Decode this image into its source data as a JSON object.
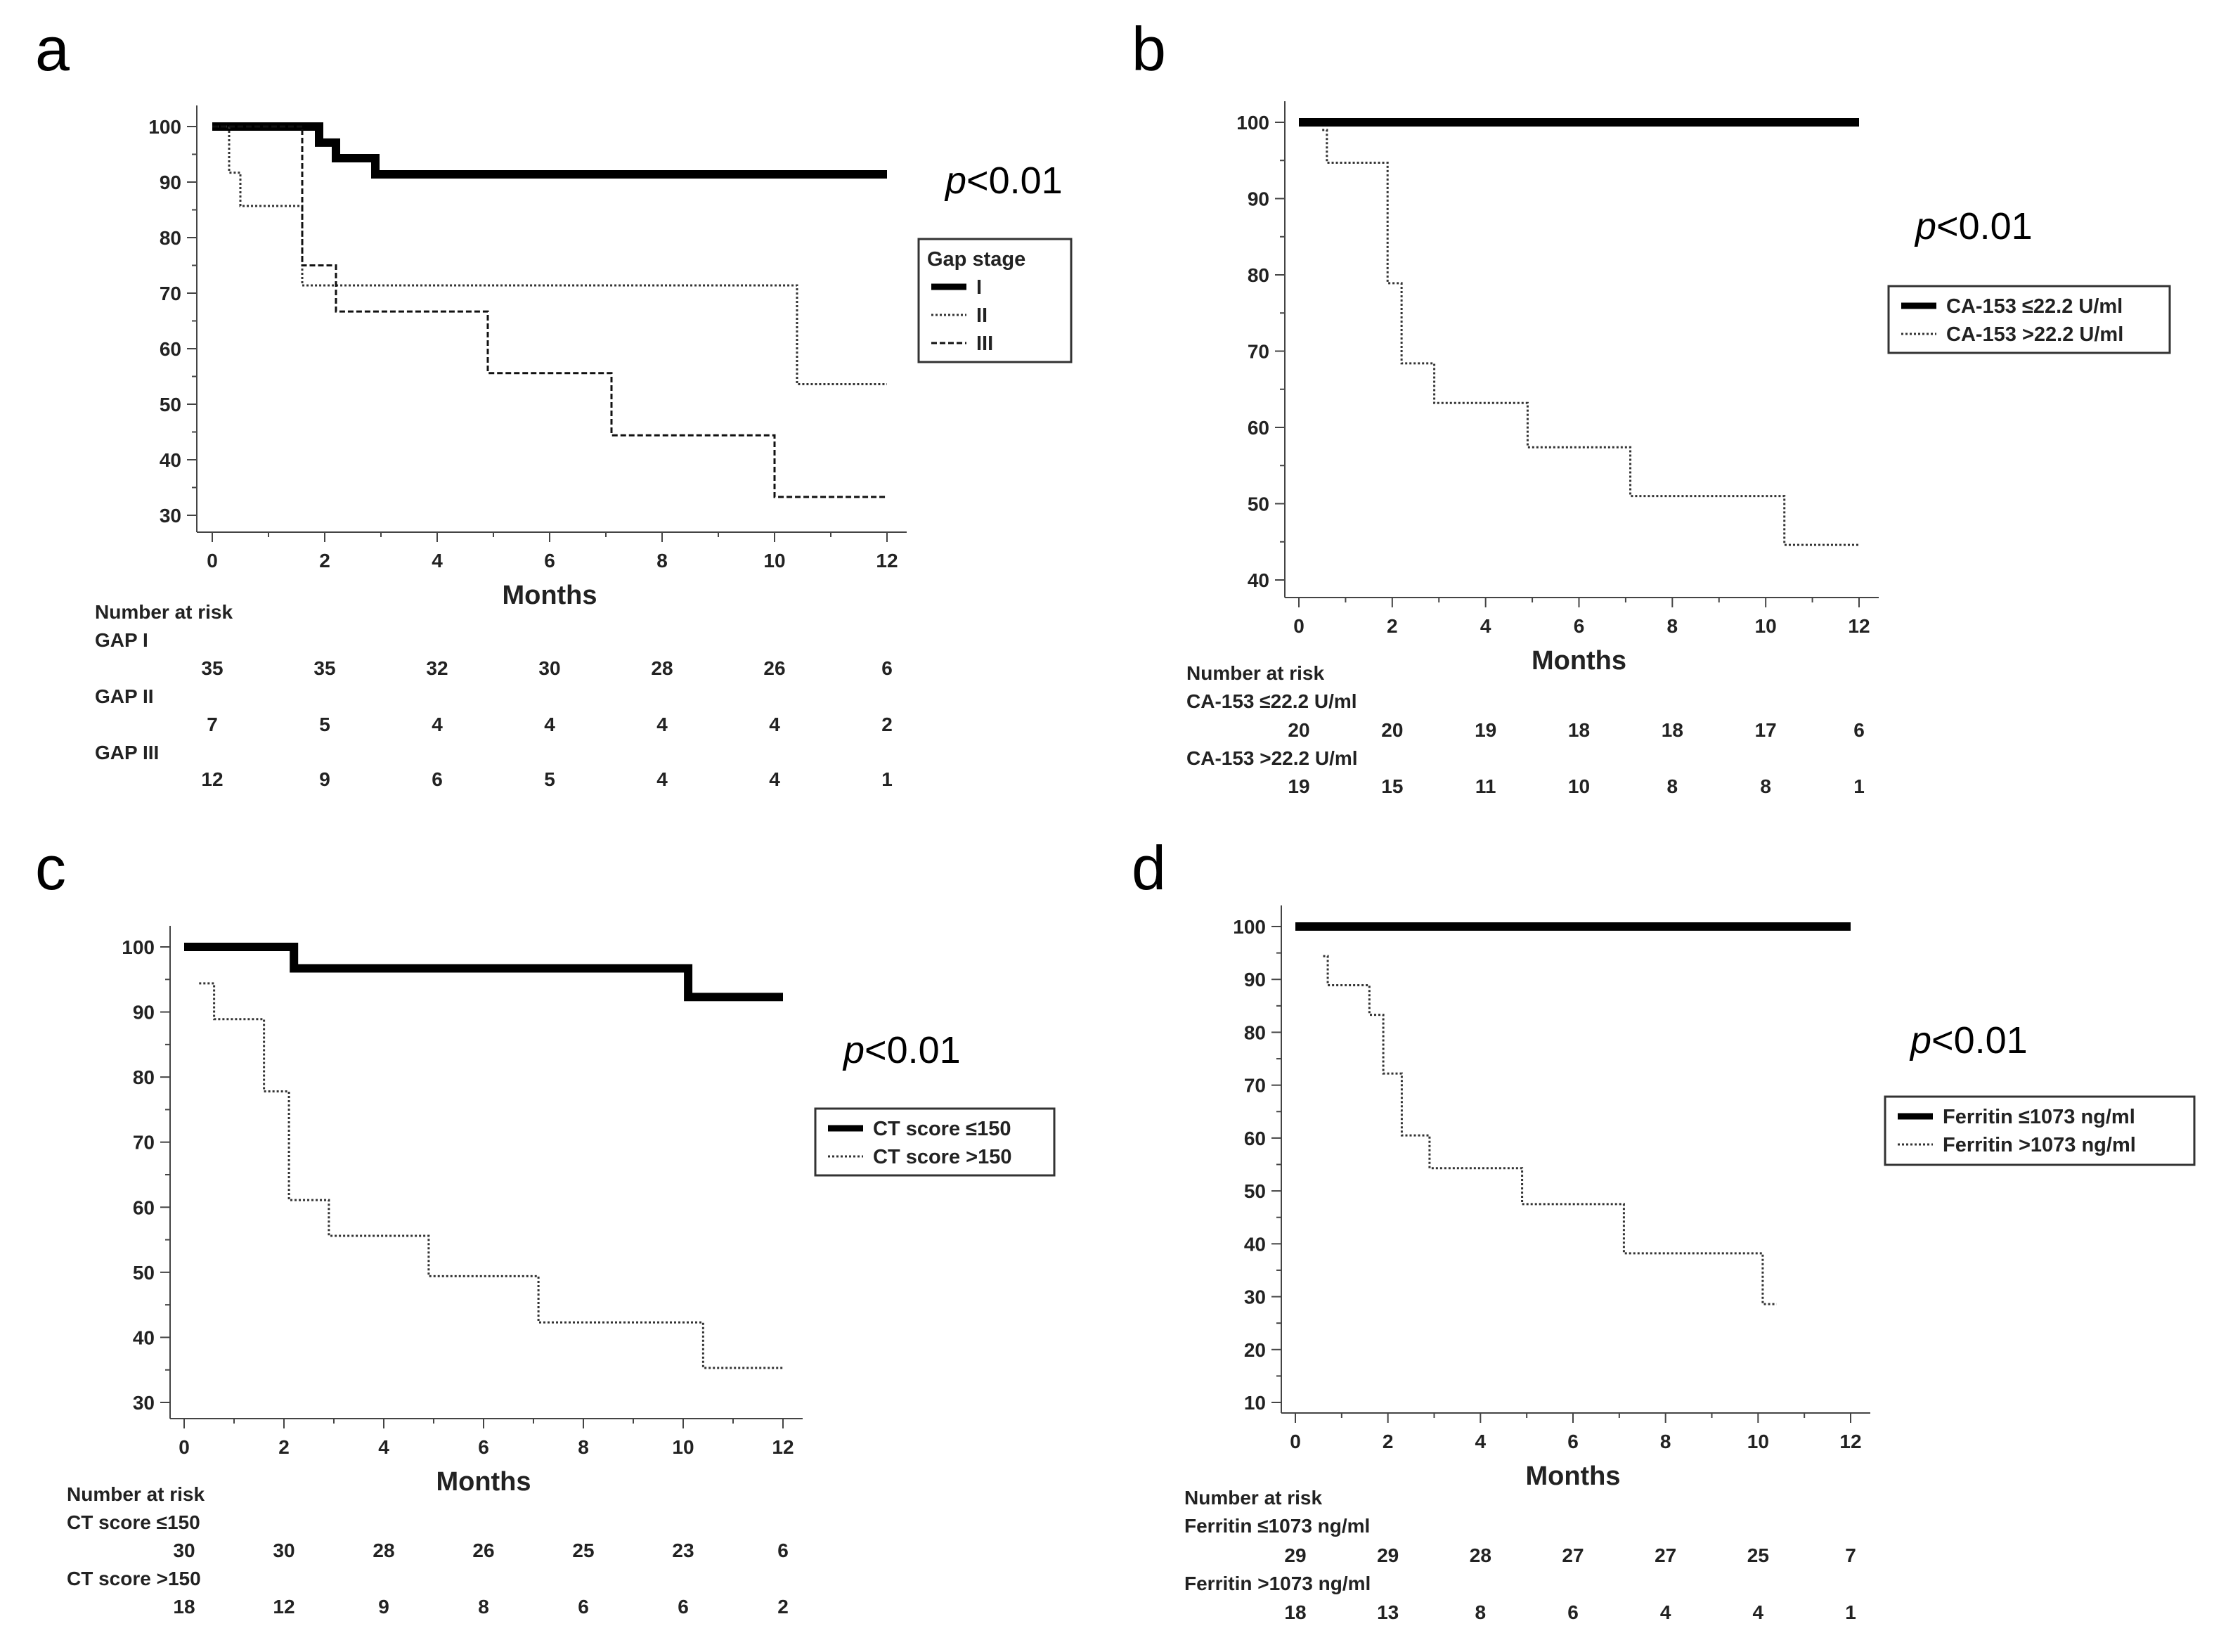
{
  "chart_data": [
    {
      "type": "line",
      "panel": "a",
      "p_value": {
        "prefix": "p",
        "rest": "<0.01"
      },
      "xlabel": "Months",
      "ylabel": "",
      "xlim": [
        0,
        12
      ],
      "ylim": [
        30,
        100
      ],
      "x_ticks": [
        0,
        2,
        4,
        6,
        8,
        10,
        12
      ],
      "y_ticks": [
        30,
        40,
        50,
        60,
        70,
        80,
        90,
        100
      ],
      "legend_title": "Gap stage",
      "series": [
        {
          "name": "I",
          "style": "solid",
          "x": [
            0,
            1.9,
            2.2,
            2.9,
            12
          ],
          "y": [
            100,
            97.1,
            94.3,
            91.4,
            91.4
          ]
        },
        {
          "name": "II",
          "style": "dotted",
          "x": [
            0,
            0.3,
            0.5,
            1.6,
            10.4,
            12
          ],
          "y": [
            100,
            91.7,
            85.7,
            71.4,
            53.6,
            53.6
          ]
        },
        {
          "name": "III",
          "style": "dashed",
          "x": [
            0,
            1.6,
            2.2,
            4.9,
            7.1,
            10,
            12
          ],
          "y": [
            100,
            75,
            66.7,
            55.6,
            44.4,
            33.3,
            33.3
          ]
        }
      ],
      "risk_table": {
        "title": "Number at risk",
        "rows": [
          {
            "label": "GAP I",
            "values": [
              "35",
              "35",
              "32",
              "30",
              "28",
              "26",
              "6"
            ]
          },
          {
            "label": "GAP II",
            "values": [
              "7",
              "5",
              "4",
              "4",
              "4",
              "4",
              "2"
            ]
          },
          {
            "label": "GAP III",
            "values": [
              "12",
              "9",
              "6",
              "5",
              "4",
              "4",
              "1"
            ]
          }
        ]
      }
    },
    {
      "type": "line",
      "panel": "b",
      "p_value": {
        "prefix": "p",
        "rest": "<0.01"
      },
      "xlabel": "Months",
      "ylabel": "",
      "xlim": [
        0,
        12
      ],
      "ylim": [
        40,
        100
      ],
      "x_ticks": [
        0,
        2,
        4,
        6,
        8,
        10,
        12
      ],
      "y_ticks": [
        40,
        50,
        60,
        70,
        80,
        90,
        100
      ],
      "legend_title": "",
      "series": [
        {
          "name": "CA-153 ≤22.2 U/ml",
          "style": "solid",
          "x": [
            0,
            12
          ],
          "y": [
            100,
            100
          ]
        },
        {
          "name": "CA-153 >22.2 U/ml",
          "style": "dotted",
          "x": [
            0.5,
            0.6,
            1.9,
            2.2,
            2.9,
            4.9,
            7.1,
            10.4,
            12
          ],
          "y": [
            99,
            94.7,
            78.9,
            68.4,
            63.2,
            57.4,
            51,
            44.6,
            44.6
          ]
        }
      ],
      "risk_table": {
        "title": "Number at risk",
        "rows": [
          {
            "label": "CA-153 ≤22.2 U/ml",
            "values": [
              "20",
              "20",
              "19",
              "18",
              "18",
              "17",
              "6"
            ]
          },
          {
            "label": "CA-153 >22.2 U/ml",
            "values": [
              "19",
              "15",
              "11",
              "10",
              "8",
              "8",
              "1"
            ]
          }
        ]
      }
    },
    {
      "type": "line",
      "panel": "c",
      "p_value": {
        "prefix": "p",
        "rest": "<0.01"
      },
      "xlabel": "Months",
      "ylabel": "",
      "xlim": [
        0,
        12
      ],
      "ylim": [
        30,
        100
      ],
      "x_ticks": [
        0,
        2,
        4,
        6,
        8,
        10,
        12
      ],
      "y_ticks": [
        30,
        40,
        50,
        60,
        70,
        80,
        90,
        100
      ],
      "legend_title": "",
      "series": [
        {
          "name": "CT score ≤150",
          "style": "solid",
          "x": [
            0,
            2.2,
            10.1,
            12
          ],
          "y": [
            100,
            96.7,
            92.3,
            92.3
          ]
        },
        {
          "name": "CT score >150",
          "style": "dotted",
          "x": [
            0.3,
            0.6,
            1.6,
            2.1,
            2.9,
            4.9,
            7.1,
            10.4,
            12
          ],
          "y": [
            94.4,
            88.9,
            77.8,
            61.1,
            55.6,
            49.4,
            42.3,
            35.3,
            35.3
          ]
        }
      ],
      "risk_table": {
        "title": "Number at risk",
        "rows": [
          {
            "label": "CT score ≤150",
            "values": [
              "30",
              "30",
              "28",
              "26",
              "25",
              "23",
              "6"
            ]
          },
          {
            "label": "CT score >150",
            "values": [
              "18",
              "12",
              "9",
              "8",
              "6",
              "6",
              "2"
            ]
          }
        ]
      }
    },
    {
      "type": "line",
      "panel": "d",
      "p_value": {
        "prefix": "p",
        "rest": "<0.01"
      },
      "xlabel": "Months",
      "ylabel": "",
      "xlim": [
        0,
        12
      ],
      "ylim": [
        10,
        100
      ],
      "x_ticks": [
        0,
        2,
        4,
        6,
        8,
        10,
        12
      ],
      "y_ticks": [
        10,
        20,
        30,
        40,
        50,
        60,
        70,
        80,
        90,
        100
      ],
      "legend_title": "",
      "series": [
        {
          "name": "Ferritin ≤1073 ng/ml",
          "style": "solid",
          "x": [
            0,
            12
          ],
          "y": [
            100,
            100
          ]
        },
        {
          "name": "Ferritin >1073 ng/ml",
          "style": "dotted",
          "x": [
            0.6,
            0.7,
            1.6,
            1.9,
            2.3,
            2.9,
            4.9,
            7.1,
            10.1,
            10.4
          ],
          "y": [
            94.4,
            88.9,
            83.3,
            72.2,
            60.5,
            54.3,
            47.5,
            38.2,
            28.6,
            28.6
          ]
        }
      ],
      "risk_table": {
        "title": "Number at risk",
        "rows": [
          {
            "label": "Ferritin ≤1073 ng/ml",
            "values": [
              "29",
              "29",
              "28",
              "27",
              "27",
              "25",
              "7"
            ]
          },
          {
            "label": "Ferritin >1073 ng/ml",
            "values": [
              "18",
              "13",
              "8",
              "6",
              "4",
              "4",
              "1"
            ]
          }
        ]
      }
    }
  ]
}
